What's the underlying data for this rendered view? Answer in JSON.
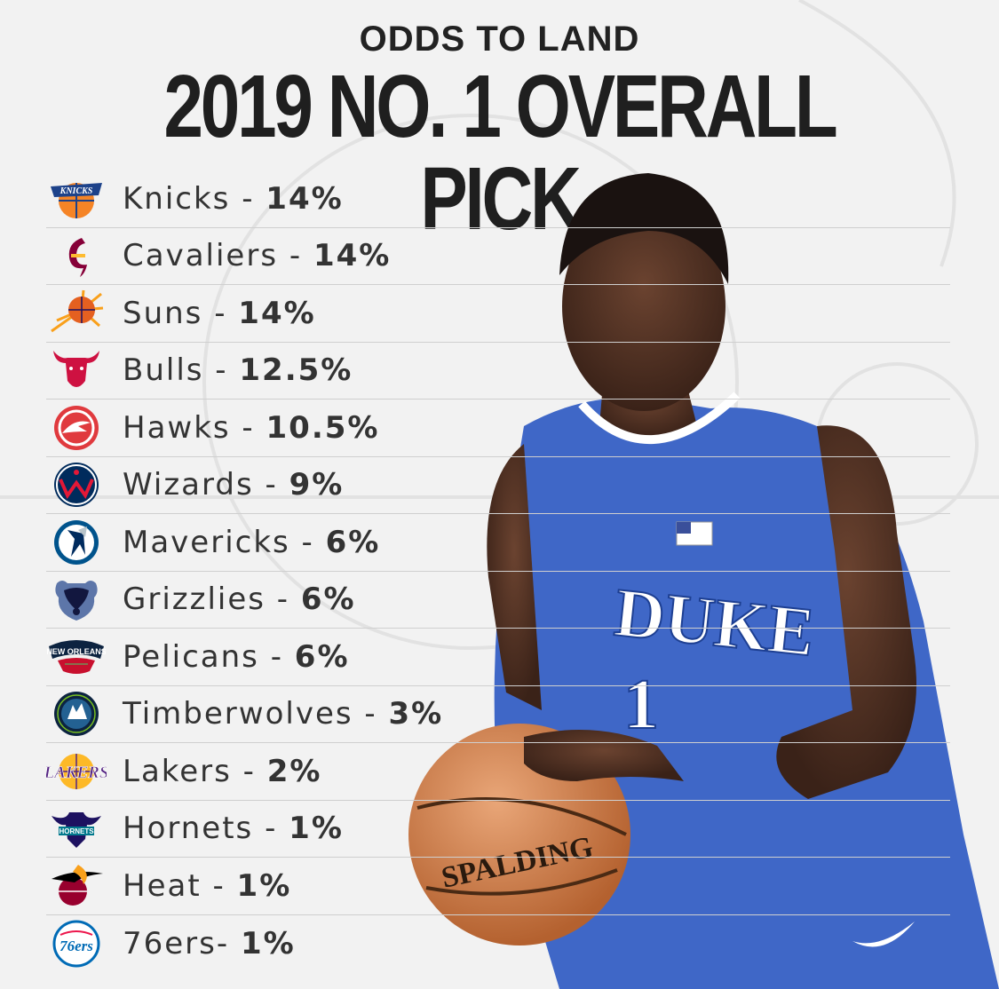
{
  "header": {
    "subtitle": "ODDS TO LAND",
    "title": "2019 NO. 1 OVERALL PICK"
  },
  "rows": [
    {
      "team": "Knicks",
      "sep": " - ",
      "odds": "14%",
      "odds_value": 14,
      "icon": "knicks-logo-icon"
    },
    {
      "team": "Cavaliers",
      "sep": " - ",
      "odds": "14%",
      "odds_value": 14,
      "icon": "cavaliers-logo-icon"
    },
    {
      "team": "Suns",
      "sep": " - ",
      "odds": "14%",
      "odds_value": 14,
      "icon": "suns-logo-icon"
    },
    {
      "team": "Bulls",
      "sep": " - ",
      "odds": "12.5%",
      "odds_value": 12.5,
      "icon": "bulls-logo-icon"
    },
    {
      "team": "Hawks",
      "sep": " - ",
      "odds": "10.5%",
      "odds_value": 10.5,
      "icon": "hawks-logo-icon"
    },
    {
      "team": "Wizards",
      "sep": " - ",
      "odds": "9%",
      "odds_value": 9,
      "icon": "wizards-logo-icon"
    },
    {
      "team": "Mavericks",
      "sep": " - ",
      "odds": "6%",
      "odds_value": 6,
      "icon": "mavericks-logo-icon"
    },
    {
      "team": "Grizzlies",
      "sep": " - ",
      "odds": "6%",
      "odds_value": 6,
      "icon": "grizzlies-logo-icon"
    },
    {
      "team": "Pelicans",
      "sep": " - ",
      "odds": "6%",
      "odds_value": 6,
      "icon": "pelicans-logo-icon"
    },
    {
      "team": "Timberwolves",
      "sep": " - ",
      "odds": "3%",
      "odds_value": 3,
      "icon": "timberwolves-logo-icon"
    },
    {
      "team": "Lakers",
      "sep": " - ",
      "odds": "2%",
      "odds_value": 2,
      "icon": "lakers-logo-icon"
    },
    {
      "team": "Hornets",
      "sep": " - ",
      "odds": "1%",
      "odds_value": 1,
      "icon": "hornets-logo-icon"
    },
    {
      "team": "Heat",
      "sep": " - ",
      "odds": "1%",
      "odds_value": 1,
      "icon": "heat-logo-icon"
    },
    {
      "team": "76ers",
      "sep": "- ",
      "odds": "1%",
      "odds_value": 1,
      "icon": "sixers-logo-icon"
    }
  ],
  "logo_text": {
    "knicks": "KNICKS",
    "pelicans": "NEW ORLEANS",
    "lakers": "LAKERS",
    "hornets": "HORNETS",
    "sixers": "76ers"
  },
  "player": {
    "jersey_name": "DUKE",
    "jersey_number": "1",
    "ball_brand": "SPALDING"
  },
  "colors": {
    "background": "#f2f2f2",
    "title": "#1f1f1f",
    "text": "#333333",
    "divider": "#cfcfcf",
    "duke_blue": "#3f67c7"
  }
}
